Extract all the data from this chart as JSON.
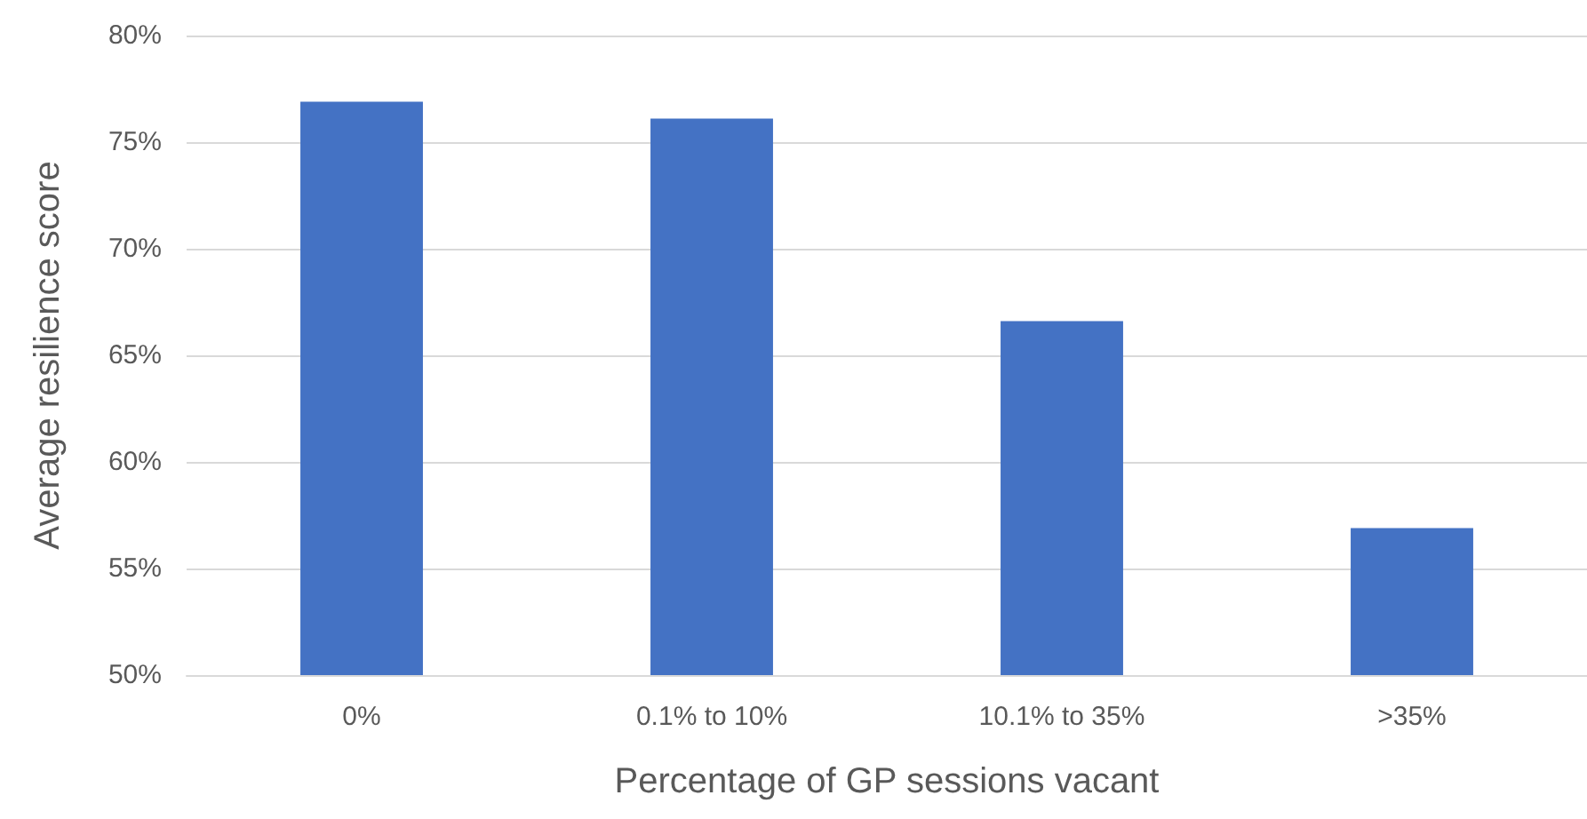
{
  "chart_data": {
    "type": "bar",
    "xlabel": "Percentage of GP sessions vacant",
    "ylabel": "Average resilience score",
    "categories": [
      "0%",
      "0.1% to 10%",
      "10.1% to 35%",
      ">35%"
    ],
    "values": [
      76.9,
      76.1,
      66.6,
      56.9
    ],
    "color": "#4472c4",
    "ylim": [
      50,
      80
    ],
    "yticks": [
      {
        "value": 50,
        "label": "50%"
      },
      {
        "value": 55,
        "label": "55%"
      },
      {
        "value": 60,
        "label": "60%"
      },
      {
        "value": 65,
        "label": "65%"
      },
      {
        "value": 70,
        "label": "70%"
      },
      {
        "value": 75,
        "label": "75%"
      },
      {
        "value": 80,
        "label": "80%"
      }
    ],
    "grid": "y"
  }
}
